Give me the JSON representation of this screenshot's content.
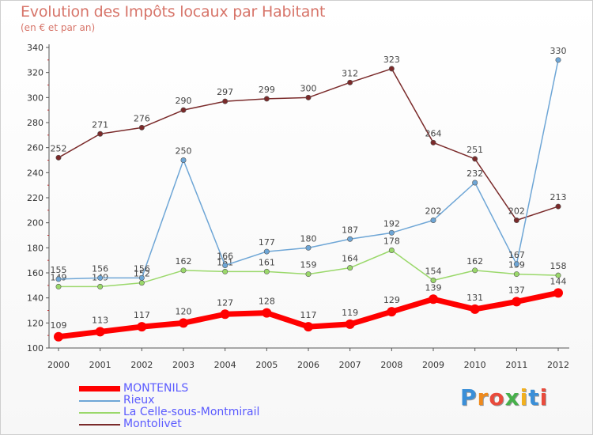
{
  "header": {
    "title": "Evolution des Impôts locaux par Habitant",
    "subtitle": "(en € et par an)"
  },
  "logo": {
    "text": "Proxiti"
  },
  "chart_data": {
    "type": "line",
    "x": [
      2000,
      2001,
      2002,
      2003,
      2004,
      2005,
      2006,
      2007,
      2008,
      2009,
      2010,
      2011,
      2012
    ],
    "ylim": [
      100,
      340
    ],
    "yticks": [
      100,
      120,
      140,
      160,
      180,
      200,
      220,
      240,
      260,
      280,
      300,
      320,
      340
    ],
    "legend_position": "bottom-left",
    "grid": false,
    "series": [
      {
        "name": "MONTENILS",
        "color": "#ff0000",
        "values": [
          109,
          113,
          117,
          120,
          127,
          128,
          117,
          119,
          129,
          139,
          131,
          137,
          144
        ]
      },
      {
        "name": "Rieux",
        "color": "#6ea6d6",
        "values": [
          155,
          156,
          156,
          250,
          166,
          177,
          180,
          187,
          192,
          202,
          232,
          167,
          330
        ]
      },
      {
        "name": "La Celle-sous-Montmirail",
        "color": "#9ad86a",
        "values": [
          149,
          149,
          152,
          162,
          161,
          161,
          159,
          164,
          178,
          154,
          162,
          159,
          158
        ]
      },
      {
        "name": "Montolivet",
        "color": "#7a2a2a",
        "values": [
          252,
          271,
          276,
          290,
          297,
          299,
          300,
          312,
          323,
          264,
          251,
          202,
          213
        ]
      }
    ]
  }
}
